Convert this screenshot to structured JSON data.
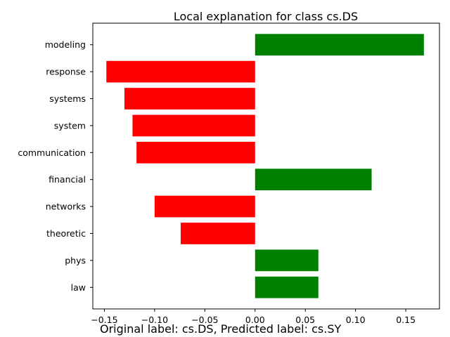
{
  "chart_data": {
    "type": "bar",
    "orientation": "horizontal",
    "title": "Local explanation for class cs.DS",
    "xlabel": "",
    "ylabel": "",
    "xlim": [
      -0.1615,
      0.1835
    ],
    "x_ticks": [
      -0.15,
      -0.1,
      -0.05,
      0.0,
      0.05,
      0.1,
      0.15
    ],
    "x_tick_labels": [
      "−0.15",
      "−0.10",
      "−0.05",
      "0.00",
      "0.05",
      "0.10",
      "0.15"
    ],
    "categories": [
      "modeling",
      "response",
      "systems",
      "system",
      "communication",
      "financial",
      "networks",
      "theoretic",
      "phys",
      "law"
    ],
    "values": [
      0.168,
      -0.148,
      -0.13,
      -0.122,
      -0.118,
      0.116,
      -0.1,
      -0.074,
      0.063,
      0.063
    ],
    "colors": {
      "positive": "#008000",
      "negative": "#ff0000"
    },
    "grid": false,
    "legend": "none"
  },
  "caption": "Original label: cs.DS, Predicted label: cs.SY"
}
